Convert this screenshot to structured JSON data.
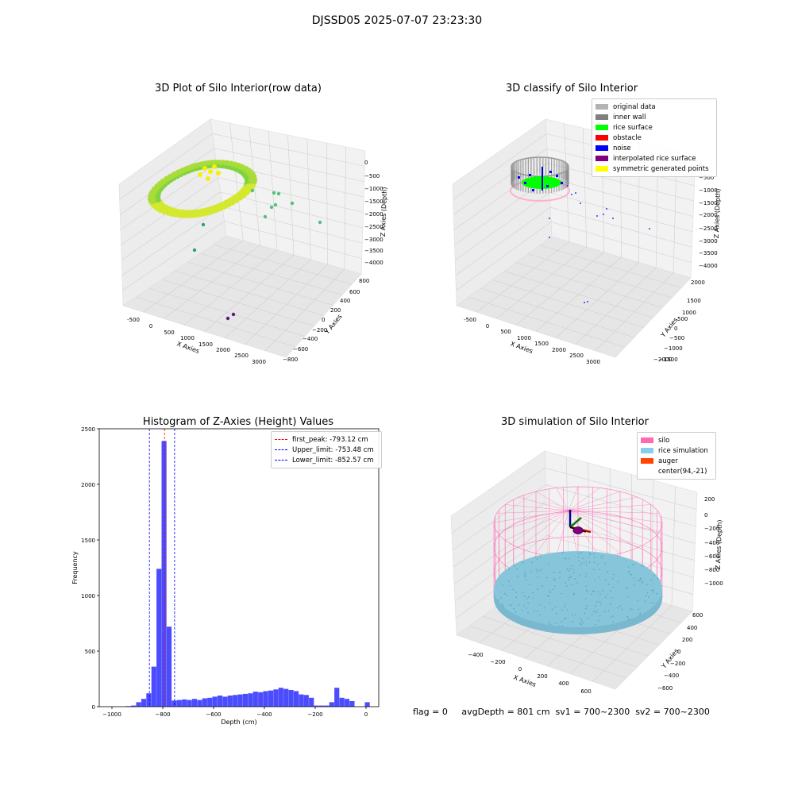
{
  "suptitle": "DJSSD05 2025-07-07 23:23:30",
  "status_text": "flag = 0     avgDepth = 801 cm  sv1 = 700~2300  sv2 = 700~2300",
  "plots": {
    "raw": {
      "title": "3D Plot of Silo Interior(row data)",
      "xlabel": "X Axies",
      "ylabel": "Y Axies",
      "zlabel": "Z Axies (Depth)",
      "xticks": [
        "-500",
        "0",
        "500",
        "1000",
        "1500",
        "2000",
        "2500",
        "3000"
      ],
      "yticks": [
        "800",
        "600",
        "400",
        "200",
        "0",
        "−200",
        "−400",
        "−600",
        "−800"
      ],
      "zticks": [
        "0",
        "−500",
        "−1000",
        "−1500",
        "−2000",
        "−2500",
        "−3000",
        "−3500",
        "−4000"
      ]
    },
    "classify": {
      "title": "3D classify of Silo Interior",
      "xlabel": "X Axies",
      "ylabel": "Y Axies",
      "zlabel": "Z Axies (Depth)",
      "xticks": [
        "-500",
        "0",
        "500",
        "1000",
        "1500",
        "2000",
        "2500",
        "3000"
      ],
      "yticks": [
        "2000",
        "1500",
        "1000",
        "500",
        "0",
        "−500",
        "−1000",
        "−1500",
        "−2000"
      ],
      "zticks": [
        "0",
        "−500",
        "−1000",
        "−1500",
        "−2000",
        "−2500",
        "−3000",
        "−3500",
        "−4000"
      ],
      "legend": [
        {
          "label": "original data",
          "color": "#b3b3b3"
        },
        {
          "label": "inner wall",
          "color": "#808080"
        },
        {
          "label": "rice surface",
          "color": "#00ff00"
        },
        {
          "label": "obstacle",
          "color": "#ff0000"
        },
        {
          "label": "noise",
          "color": "#0000ff"
        },
        {
          "label": "interpolated rice surface",
          "color": "#800080"
        },
        {
          "label": "symmetric generated points",
          "color": "#ffff00"
        }
      ]
    },
    "simulation": {
      "title": "3D simulation of Silo Interior",
      "xlabel": "X Axies",
      "ylabel": "Y Axies",
      "zlabel": "Z Axies (Depth)",
      "xticks": [
        "−400",
        "−200",
        "0",
        "200",
        "400",
        "600"
      ],
      "yticks": [
        "600",
        "400",
        "200",
        "0",
        "−200",
        "−400",
        "−600"
      ],
      "zticks": [
        "200",
        "0",
        "−200",
        "−400",
        "−600",
        "−800",
        "−1000"
      ],
      "legend": [
        {
          "label": "silo",
          "color": "#ff69b4"
        },
        {
          "label": "rice simulation",
          "color": "#87ceeb"
        },
        {
          "label": "auger",
          "color": "#ff4500"
        },
        {
          "label": "center(94,-21)",
          "color": ""
        }
      ]
    }
  },
  "chart_data": {
    "type": "bar",
    "title": "Histogram of Z-Axies (Height) Values",
    "xlabel": "Depth (cm)",
    "ylabel": "Frequency",
    "xlim": [
      -1050,
      50
    ],
    "ylim": [
      0,
      2500
    ],
    "xticks": [
      -1000,
      -800,
      -600,
      -400,
      -200,
      0
    ],
    "yticks": [
      0,
      500,
      1000,
      1500,
      2000,
      2500
    ],
    "bar_color": "#0000ff",
    "bin_width": 19.5,
    "bins": [
      {
        "x": -935,
        "value": 5
      },
      {
        "x": -915,
        "value": 10
      },
      {
        "x": -895,
        "value": 40
      },
      {
        "x": -875,
        "value": 70
      },
      {
        "x": -855,
        "value": 120
      },
      {
        "x": -835,
        "value": 360
      },
      {
        "x": -815,
        "value": 1240
      },
      {
        "x": -795,
        "value": 2390
      },
      {
        "x": -775,
        "value": 720
      },
      {
        "x": -755,
        "value": 55
      },
      {
        "x": -735,
        "value": 60
      },
      {
        "x": -715,
        "value": 65
      },
      {
        "x": -695,
        "value": 60
      },
      {
        "x": -675,
        "value": 70
      },
      {
        "x": -655,
        "value": 60
      },
      {
        "x": -635,
        "value": 75
      },
      {
        "x": -615,
        "value": 80
      },
      {
        "x": -595,
        "value": 90
      },
      {
        "x": -575,
        "value": 100
      },
      {
        "x": -555,
        "value": 90
      },
      {
        "x": -535,
        "value": 100
      },
      {
        "x": -515,
        "value": 105
      },
      {
        "x": -495,
        "value": 110
      },
      {
        "x": -475,
        "value": 115
      },
      {
        "x": -455,
        "value": 120
      },
      {
        "x": -435,
        "value": 135
      },
      {
        "x": -415,
        "value": 130
      },
      {
        "x": -395,
        "value": 140
      },
      {
        "x": -375,
        "value": 145
      },
      {
        "x": -355,
        "value": 155
      },
      {
        "x": -335,
        "value": 170
      },
      {
        "x": -315,
        "value": 160
      },
      {
        "x": -295,
        "value": 150
      },
      {
        "x": -275,
        "value": 140
      },
      {
        "x": -255,
        "value": 110
      },
      {
        "x": -235,
        "value": 105
      },
      {
        "x": -215,
        "value": 80
      },
      {
        "x": -195,
        "value": 10
      },
      {
        "x": -175,
        "value": 10
      },
      {
        "x": -155,
        "value": 10
      },
      {
        "x": -135,
        "value": 40
      },
      {
        "x": -115,
        "value": 170
      },
      {
        "x": -95,
        "value": 80
      },
      {
        "x": -75,
        "value": 70
      },
      {
        "x": -55,
        "value": 50
      },
      {
        "x": -35,
        "value": 0
      },
      {
        "x": -15,
        "value": 0
      },
      {
        "x": 5,
        "value": 40
      }
    ],
    "vlines": [
      {
        "label": "first_peak: -793.12 cm",
        "x": -793.12,
        "color": "#ff0000"
      },
      {
        "label": "Upper_limit: -753.48 cm",
        "x": -753.48,
        "color": "#0000ff"
      },
      {
        "label": "Lower_limit: -852.57 cm",
        "x": -852.57,
        "color": "#0000ff"
      }
    ],
    "legend_position": "top-right"
  }
}
